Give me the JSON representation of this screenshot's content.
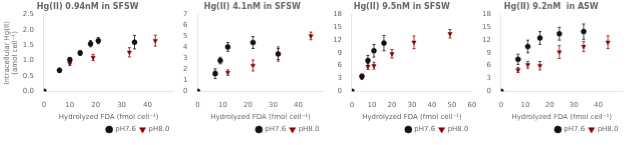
{
  "chart_data": [
    {
      "type": "scatter",
      "title": "Hg(II) 0.94nM in SFSW",
      "xlabel": "Hydrolyzed FDA (fmol cell⁻¹)",
      "ylabel": "Intracellular Hg(II)\n(amol cell⁻¹)",
      "xlim": [
        0,
        50
      ],
      "ylim": [
        0,
        2.5
      ],
      "xticks": [
        0,
        10,
        20,
        30,
        40
      ],
      "yticks": [
        {
          "value": 0,
          "label": "0.0"
        },
        0.5,
        {
          "value": 1,
          "label": "1.0"
        },
        1.5,
        {
          "value": 2,
          "label": "2.0"
        },
        2.5
      ],
      "grid": false,
      "legend": "lower right",
      "series": [
        {
          "name": "pH7.6",
          "color": "#111111",
          "marker": "circle",
          "x": [
            0,
            6,
            10,
            14,
            18,
            21,
            35
          ],
          "values": [
            0.0,
            0.68,
            1.03,
            1.25,
            1.55,
            1.65,
            1.6
          ],
          "yerr": [
            0,
            0.07,
            0.07,
            0.08,
            0.1,
            0.1,
            0.22
          ]
        },
        {
          "name": "pH8.0",
          "color": "#8B0000",
          "marker": "triangle-down",
          "x": [
            0,
            10,
            19,
            33,
            43
          ],
          "values": [
            0.0,
            0.9,
            1.1,
            1.27,
            1.65
          ],
          "yerr": [
            0,
            0.06,
            0.1,
            0.15,
            0.18
          ]
        }
      ]
    },
    {
      "type": "scatter",
      "title": "Hg(II) 4.1nM in SFSW",
      "xlabel": "Hydrolyzed FDA (fmol cell⁻¹)",
      "xlim": [
        0,
        50
      ],
      "ylim": [
        0,
        7
      ],
      "xticks": [
        0,
        10,
        20,
        30,
        40
      ],
      "yticks": [
        0,
        1,
        2,
        3,
        4,
        5,
        6,
        7
      ],
      "grid": false,
      "legend": "lower right",
      "series": [
        {
          "name": "pH7.6",
          "color": "#111111",
          "marker": "circle",
          "x": [
            0,
            7,
            9,
            12,
            22,
            32
          ],
          "values": [
            0.0,
            1.6,
            2.8,
            4.05,
            4.45,
            3.4
          ],
          "yerr": [
            0,
            0.45,
            0.3,
            0.4,
            0.55,
            0.5
          ]
        },
        {
          "name": "pH8.0",
          "color": "#8B0000",
          "marker": "triangle-down",
          "x": [
            0,
            7,
            12,
            22,
            32,
            45
          ],
          "values": [
            0.0,
            1.65,
            1.7,
            2.35,
            3.4,
            5.05
          ],
          "yerr": [
            0,
            0.2,
            0.25,
            0.5,
            0.65,
            0.35
          ]
        }
      ]
    },
    {
      "type": "scatter",
      "title": "Hg(II) 9.5nM in SFSW",
      "xlabel": "Hydrolyzed FDA (fmol cell⁻¹)",
      "xlim": [
        0,
        60
      ],
      "ylim": [
        0,
        18
      ],
      "xticks": [
        0,
        10,
        20,
        30,
        40,
        50,
        60
      ],
      "yticks": [
        0,
        3,
        6,
        9,
        12,
        15,
        18
      ],
      "grid": false,
      "legend": "lower right",
      "series": [
        {
          "name": "pH7.6",
          "color": "#111111",
          "marker": "circle",
          "x": [
            0,
            5,
            8,
            11,
            16
          ],
          "values": [
            0.0,
            3.5,
            7.2,
            9.5,
            11.3
          ],
          "yerr": [
            0,
            0.5,
            1.2,
            1.5,
            1.8
          ]
        },
        {
          "name": "pH8.0",
          "color": "#8B0000",
          "marker": "triangle-down",
          "x": [
            0,
            5,
            8,
            11,
            20,
            31,
            49
          ],
          "values": [
            0.0,
            3.2,
            5.8,
            6.0,
            8.8,
            11.5,
            13.5
          ],
          "yerr": [
            0,
            0.4,
            0.7,
            0.8,
            1.0,
            1.5,
            1.0
          ]
        }
      ]
    },
    {
      "type": "scatter",
      "title": "Hg(II) 9.2nM  in ASW",
      "xlabel": "Hydrolyzed FDA (fmol cell⁻¹)",
      "xlim": [
        0,
        50
      ],
      "ylim": [
        0,
        18
      ],
      "xticks": [
        0,
        10,
        20,
        30,
        40
      ],
      "yticks": [
        0,
        3,
        6,
        9,
        12,
        15,
        18
      ],
      "grid": false,
      "legend": "lower right",
      "series": [
        {
          "name": "pH7.6",
          "color": "#111111",
          "marker": "circle",
          "x": [
            0,
            7,
            11,
            16,
            24,
            34
          ],
          "values": [
            0.0,
            7.5,
            10.5,
            12.5,
            13.5,
            14.0
          ],
          "yerr": [
            0,
            1.2,
            1.5,
            1.5,
            1.5,
            1.8
          ]
        },
        {
          "name": "pH8.0",
          "color": "#8B0000",
          "marker": "triangle-down",
          "x": [
            0,
            7,
            11,
            16,
            24,
            34,
            44
          ],
          "values": [
            0.0,
            5.0,
            6.2,
            6.0,
            9.2,
            10.5,
            11.5
          ],
          "yerr": [
            0,
            0.6,
            0.8,
            1.0,
            1.5,
            1.2,
            1.5
          ]
        }
      ]
    }
  ]
}
